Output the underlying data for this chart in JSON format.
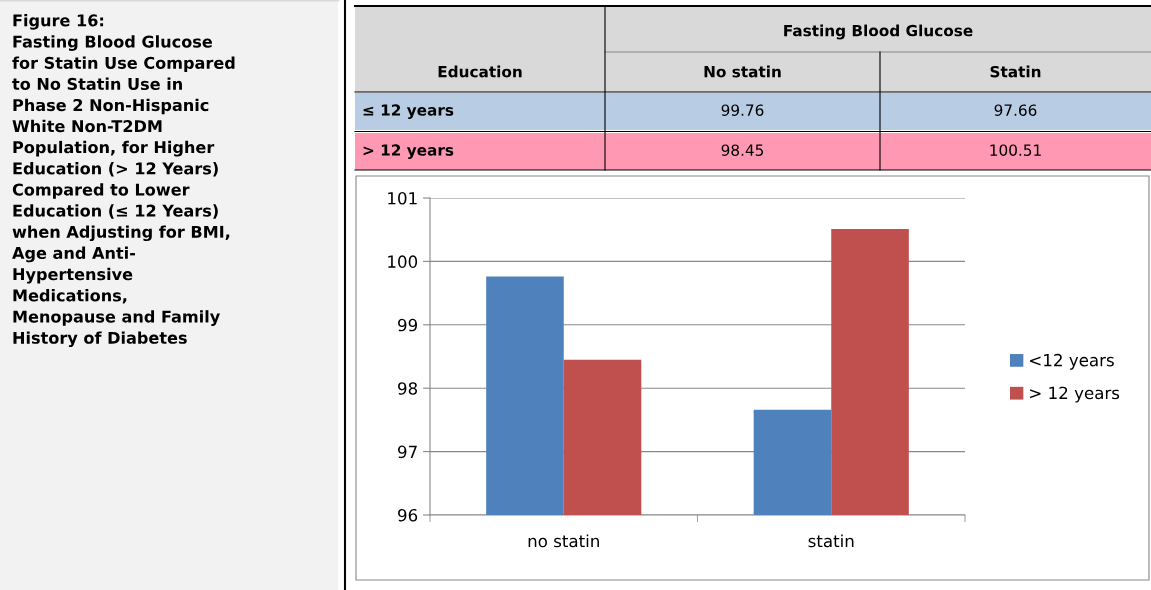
{
  "chart_data": {
    "type": "bar",
    "title": "Figure 16:\nFasting Blood Glucose\nfor Statin Use Compared\nto No Statin Use in\nPhase 2 Non-Hispanic\nWhite Non-T2DM\nPopulation, for Higher\nEducation (> 12 Years)\nCompared to Lower\nEducation (≤ 12 Years)\nwhen Adjusting for BMI,\nAge and Anti-\nHypertensive\nMedications,\nMenopause and Family\nHistory of Diabetes",
    "categories": [
      "no statin",
      "statin"
    ],
    "series": [
      {
        "name": "<12 years",
        "color": "#4f81bd",
        "values": [
          99.76,
          97.66
        ]
      },
      {
        "name": "> 12 years",
        "color": "#c0504d",
        "values": [
          98.45,
          100.51
        ]
      }
    ],
    "annotations": [
      "Fasting Blood Glucose",
      "Education",
      "No statin",
      "Statin",
      "≤ 12 years",
      "> 12 years",
      "99.76",
      "97.66",
      "98.45",
      "100.51"
    ],
    "ylim": [
      96,
      101
    ],
    "yticks": [
      96,
      97,
      98,
      99,
      100,
      101
    ],
    "grid": "y",
    "legend": "right"
  }
}
